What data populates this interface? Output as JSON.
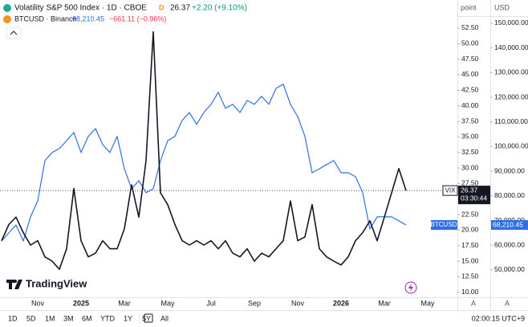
{
  "header": {
    "vix_title": "Volatility S&P 500 Index · 1D · CBOE",
    "vix_flag": "D",
    "vix_price": "26.37",
    "vix_change": "+2.20 (+9.10%)",
    "btc_title": "BTCUSD · Binance",
    "btc_price": "68,210.45",
    "btc_change": "−661.11 (−0.96%)",
    "vix_tag_price": "26.37",
    "vix_countdown": "03:30:44",
    "btc_tag_price": "68,210.45",
    "left_axis_unit": "point",
    "right_axis_unit": "USD",
    "left_axis_mode": "A",
    "right_axis_mode": "A",
    "brand": "TradingView"
  },
  "toolbar": {
    "ranges": [
      "1D",
      "5D",
      "1M",
      "3M",
      "6M",
      "YTD",
      "1Y",
      "5Y",
      "All"
    ],
    "clock": "02:00:15 UTC+9"
  },
  "chart_data": {
    "type": "line",
    "categories": [
      null,
      null,
      null,
      null,
      null,
      "Nov",
      null,
      null,
      null,
      null,
      null,
      "2025",
      null,
      null,
      null,
      null,
      null,
      "Mar",
      null,
      null,
      null,
      null,
      null,
      "May",
      null,
      null,
      null,
      null,
      null,
      "Jul",
      null,
      null,
      null,
      null,
      null,
      "Sep",
      null,
      null,
      null,
      null,
      null,
      "Nov",
      null,
      null,
      null,
      null,
      null,
      "2026",
      null,
      null,
      null,
      null,
      null,
      "Mar",
      null,
      null,
      null,
      null,
      null,
      "May",
      null,
      null,
      null
    ],
    "series": [
      {
        "name": "VIX",
        "color": "#131722",
        "values": [
          18.3,
          20.9,
          22.1,
          19.6,
          17.6,
          18.3,
          15.7,
          15.0,
          13.7,
          17.0,
          26.7,
          18.3,
          15.7,
          16.3,
          18.3,
          17.0,
          17.0,
          20.2,
          27.3,
          22.1,
          31.2,
          51.9,
          26.0,
          24.1,
          20.9,
          18.3,
          17.6,
          18.3,
          17.6,
          18.3,
          17.0,
          18.3,
          16.3,
          15.7,
          17.0,
          15.0,
          16.3,
          15.7,
          17.0,
          18.3,
          24.7,
          18.3,
          18.9,
          24.1,
          17.0,
          15.7,
          15.0,
          14.4,
          15.7,
          18.3,
          19.6,
          21.5,
          18.3,
          22.1,
          26.0,
          29.9,
          26.37,
          null,
          null,
          null,
          null,
          null,
          null
        ]
      },
      {
        "name": "BTCUSD",
        "color": "#2f6fe4",
        "axis": "y2",
        "values": [
          61700,
          65000,
          68200,
          61700,
          71500,
          78000,
          94300,
          97600,
          99200,
          102400,
          105700,
          97600,
          104100,
          107300,
          100800,
          97600,
          104100,
          91000,
          82900,
          86200,
          81300,
          82900,
          94300,
          102400,
          104100,
          110600,
          113800,
          109000,
          113800,
          117100,
          122000,
          115500,
          117100,
          113800,
          118700,
          117100,
          120400,
          117100,
          123600,
          125300,
          117100,
          112200,
          104100,
          89400,
          91000,
          92700,
          94300,
          89400,
          89400,
          87800,
          81300,
          66600,
          71500,
          71500,
          71500,
          69900,
          68210.45,
          null,
          null,
          null,
          null,
          null,
          null
        ]
      }
    ],
    "ylim": [
      9.2,
      53.4
    ],
    "yticks": [
      {
        "value": 10,
        "label": "10.00"
      },
      {
        "value": 12.5,
        "label": "12.50"
      },
      {
        "value": 15,
        "label": "15.00"
      },
      {
        "value": 17.5,
        "label": "17.50"
      },
      {
        "value": 20,
        "label": "20.00"
      },
      {
        "value": 22.5,
        "label": "22.50"
      },
      {
        "value": 25,
        "label": "25.00"
      },
      {
        "value": 27.5,
        "label": "27.50"
      },
      {
        "value": 30,
        "label": "30.00"
      },
      {
        "value": 32.5,
        "label": "32.50"
      },
      {
        "value": 35,
        "label": "35.00"
      },
      {
        "value": 37.5,
        "label": "37.50"
      },
      {
        "value": 40,
        "label": "40.00"
      },
      {
        "value": 42.5,
        "label": "42.50"
      },
      {
        "value": 45,
        "label": "45.00"
      },
      {
        "value": 47.5,
        "label": "47.50"
      },
      {
        "value": 50,
        "label": "50.00"
      },
      {
        "value": 52.5,
        "label": "52.50"
      }
    ],
    "y2lim": [
      38900,
      150300
    ],
    "y2ticks": [
      {
        "value": 50000,
        "label": "50,000.00"
      },
      {
        "value": 60000,
        "label": "60,000.00"
      },
      {
        "value": 70000,
        "label": "70,000.00"
      },
      {
        "value": 80000,
        "label": "80,000.00"
      },
      {
        "value": 90000,
        "label": "90,000.00"
      },
      {
        "value": 100000,
        "label": "100,000.00"
      },
      {
        "value": 110000,
        "label": "110,000.00"
      },
      {
        "value": 120000,
        "label": "120,000.00"
      },
      {
        "value": 130000,
        "label": "130,000.00"
      },
      {
        "value": 140000,
        "label": "140,000.00"
      },
      {
        "value": 150000,
        "label": "150,000.00"
      }
    ],
    "grid": false
  }
}
